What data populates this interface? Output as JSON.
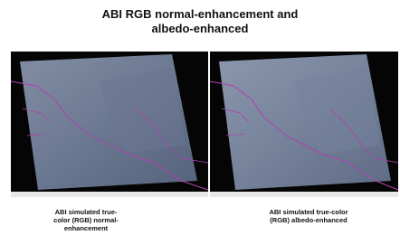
{
  "title": {
    "lines": [
      "ABI RGB normal-enhancement and",
      "albedo-enhanced"
    ]
  },
  "panels": [
    {
      "caption": [
        "ABI simulated true-",
        "color (RGB) normal-",
        "enhancement"
      ]
    },
    {
      "caption": [
        "ABI simulated true-color",
        "(RGB) albedo-enhanced"
      ]
    }
  ]
}
